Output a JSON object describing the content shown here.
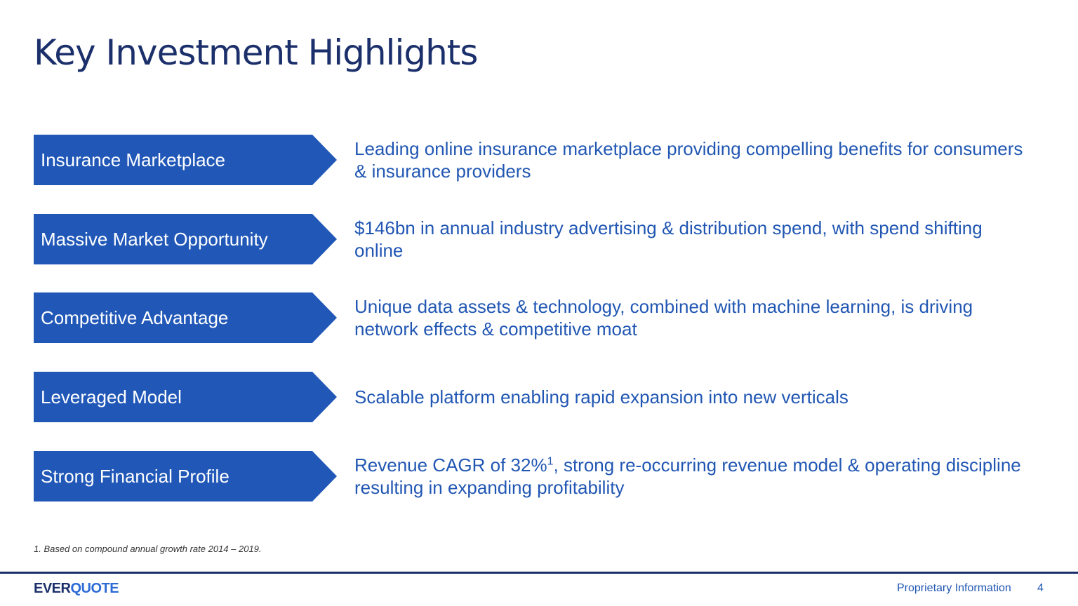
{
  "title": "Key Investment Highlights",
  "items": [
    {
      "label": "Insurance Marketplace",
      "description": "Leading online insurance marketplace providing compelling benefits for consumers & insurance providers"
    },
    {
      "label": "Massive Market Opportunity",
      "description": "$146bn in annual industry advertising & distribution spend, with spend shifting online"
    },
    {
      "label": "Competitive Advantage",
      "description": "Unique data assets & technology, combined with machine learning, is driving network effects & competitive moat"
    },
    {
      "label": "Leveraged Model",
      "description": "Scalable platform enabling rapid expansion into new verticals"
    },
    {
      "label": "Strong Financial Profile",
      "description": "Revenue CAGR of 32%",
      "footnote_ref": "1",
      "description_end": ", strong re-occurring revenue model & operating discipline resulting in expanding profitability"
    }
  ],
  "footnote": "1. Based on compound annual growth rate 2014 – 2019.",
  "footer": {
    "logo": [
      "EVER",
      "QUOTE"
    ],
    "label": "Proprietary Information",
    "page": 4
  }
}
